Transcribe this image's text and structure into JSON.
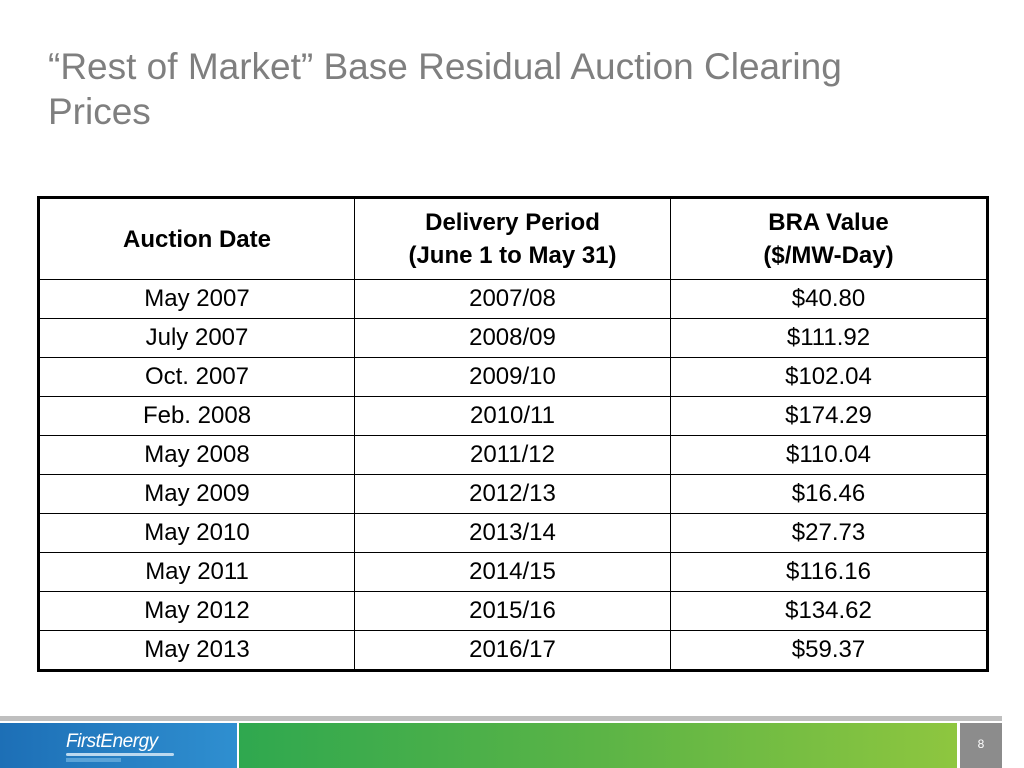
{
  "slide": {
    "title_line1": "“Rest of Market” Base Residual Auction Clearing",
    "title_line2": "Prices",
    "page_number": "8"
  },
  "table": {
    "headers": [
      {
        "line1": "Auction Date",
        "line2": ""
      },
      {
        "line1": "Delivery Period",
        "line2": "(June 1 to May 31)"
      },
      {
        "line1": "BRA Value",
        "line2": "($/MW-Day)"
      }
    ],
    "rows": [
      [
        "May 2007",
        "2007/08",
        "$40.80"
      ],
      [
        "July 2007",
        "2008/09",
        "$111.92"
      ],
      [
        "Oct. 2007",
        "2009/10",
        "$102.04"
      ],
      [
        "Feb. 2008",
        "2010/11",
        "$174.29"
      ],
      [
        "May 2008",
        "2011/12",
        "$110.04"
      ],
      [
        "May 2009",
        "2012/13",
        "$16.46"
      ],
      [
        "May 2010",
        "2013/14",
        "$27.73"
      ],
      [
        "May 2011",
        "2014/15",
        "$116.16"
      ],
      [
        "May 2012",
        "2015/16",
        "$134.62"
      ],
      [
        "May 2013",
        "2016/17",
        "$59.37"
      ]
    ]
  },
  "footer": {
    "logo_text": "FirstEnergy",
    "colors": {
      "logo_blue": "#1d6fb6",
      "band_green_start": "#2fa84f",
      "band_green_end": "#8ec63f",
      "page_gray": "#8c8c8c"
    }
  }
}
